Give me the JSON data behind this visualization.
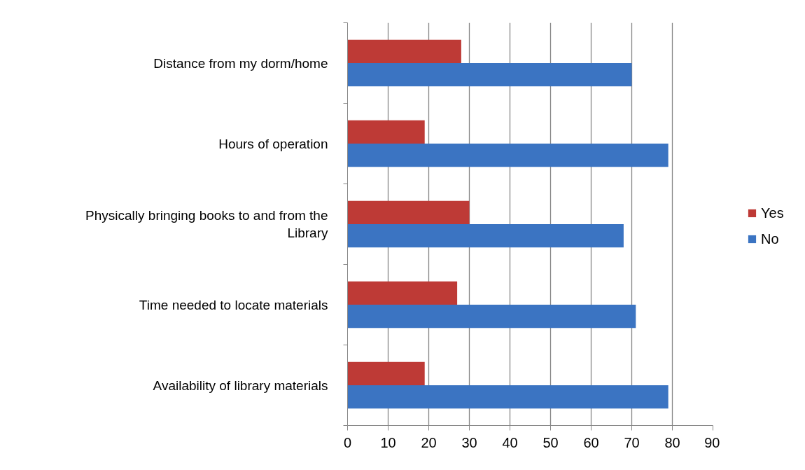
{
  "chart_data": {
    "type": "bar",
    "orientation": "horizontal",
    "categories": [
      "Distance from my dorm/home",
      "Hours of operation",
      "Physically bringing books to and from the Library",
      "Time needed to locate materials",
      "Availability of library materials"
    ],
    "series": [
      {
        "name": "Yes",
        "color": "#be3a36",
        "values": [
          28,
          19,
          30,
          27,
          19
        ]
      },
      {
        "name": "No",
        "color": "#3b74c2",
        "values": [
          70,
          79,
          68,
          71,
          79
        ]
      }
    ],
    "xlim": [
      0,
      90
    ],
    "xticks": [
      0,
      10,
      20,
      30,
      40,
      50,
      60,
      70,
      80,
      90
    ],
    "grid": "x",
    "legend": "right"
  }
}
